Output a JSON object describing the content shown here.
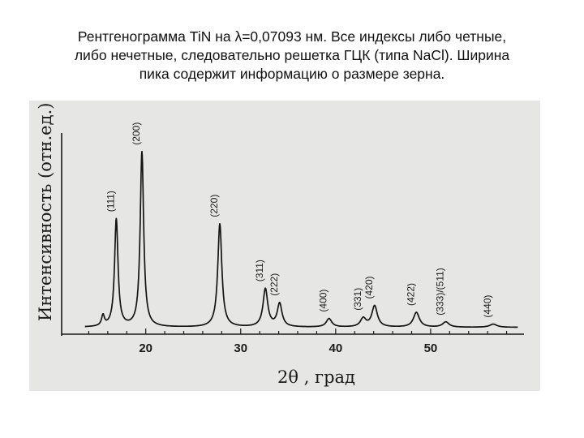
{
  "caption": {
    "line1": "Рентгенограмма TiN на λ=0,07093 нм. Все индексы либо четные,",
    "line2": "либо нечетные, следовательно решетка ГЦК (типа NaCl). Ширина",
    "line3": "пика содержит информацию о размере зерна."
  },
  "chart_data": {
    "type": "line",
    "xlabel": "2θ , град",
    "ylabel": "Интенсивность (отн.ед.)",
    "x_ticks": [
      20,
      30,
      40,
      50
    ],
    "xlim": [
      12,
      60
    ],
    "ylim": [
      0,
      100
    ],
    "grid": false,
    "baseline": 4,
    "peaks": [
      {
        "label": "",
        "x": 15.5,
        "height": 5,
        "width": 0.18
      },
      {
        "label": "(111)",
        "x": 16.9,
        "height": 51,
        "width": 0.22
      },
      {
        "label": "(200)",
        "x": 19.6,
        "height": 83,
        "width": 0.22
      },
      {
        "label": "(220)",
        "x": 27.8,
        "height": 49,
        "width": 0.26
      },
      {
        "label": "(311)",
        "x": 32.6,
        "height": 18,
        "width": 0.3
      },
      {
        "label": "(222)",
        "x": 34.1,
        "height": 11,
        "width": 0.3
      },
      {
        "label": "(400)",
        "x": 39.3,
        "height": 4,
        "width": 0.35
      },
      {
        "label": "(331)",
        "x": 42.9,
        "height": 4,
        "width": 0.35
      },
      {
        "label": "(420)",
        "x": 44.1,
        "height": 10,
        "width": 0.35
      },
      {
        "label": "(422)",
        "x": 48.5,
        "height": 7,
        "width": 0.38
      },
      {
        "label": "(333)/(511)",
        "x": 51.6,
        "height": 2.5,
        "width": 0.4
      },
      {
        "label": "(440)",
        "x": 56.6,
        "height": 1.5,
        "width": 0.45
      }
    ]
  }
}
